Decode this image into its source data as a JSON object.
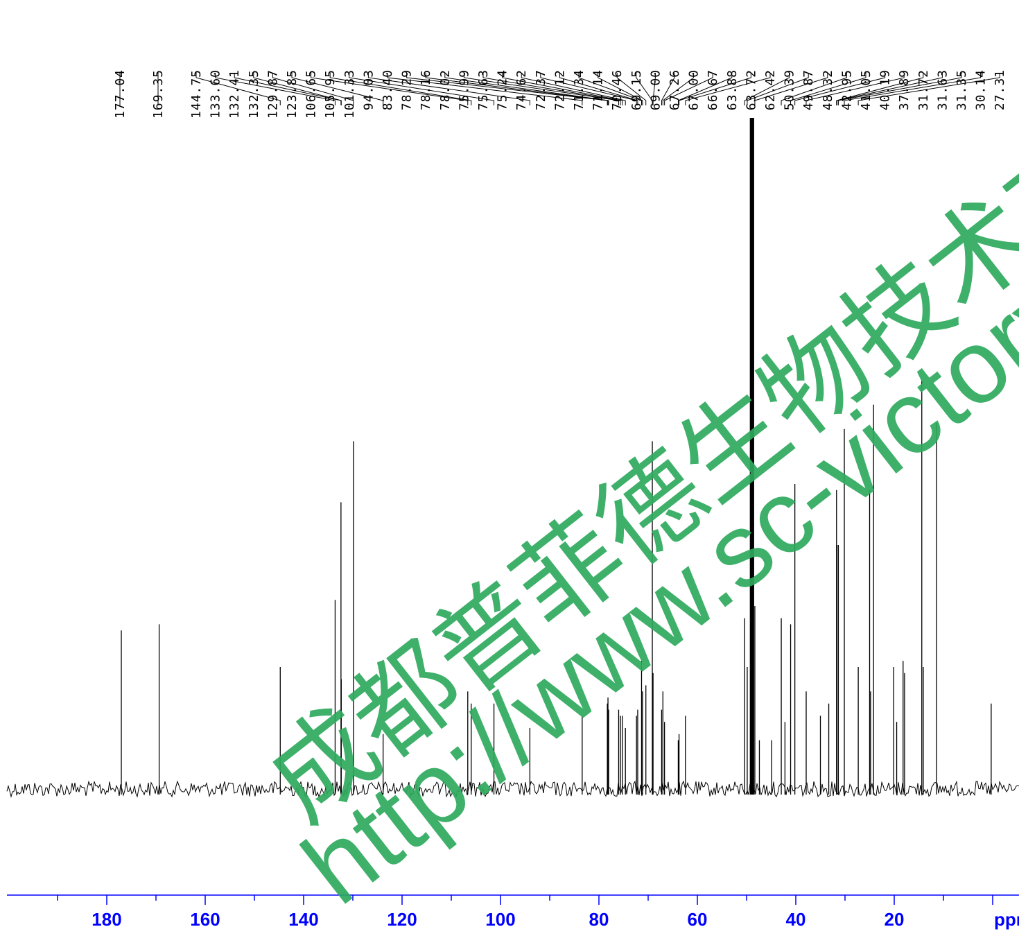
{
  "chart_data": {
    "type": "line",
    "title": "",
    "xlabel": "ppm",
    "ylabel": "",
    "x_reversed": true,
    "xlim": [
      197,
      -5
    ],
    "x_ticks_major": [
      180,
      160,
      140,
      120,
      100,
      80,
      60,
      40,
      20
    ],
    "x_ticks_minor_step": 10,
    "axis_color": "#0000ff",
    "trace_color": "#000000",
    "grid": false,
    "legend": "none",
    "peak_labels": [
      "177.04",
      "169.35",
      "144.75",
      "133.60",
      "132.41",
      "132.35",
      "129.87",
      "123.85",
      "106.65",
      "105.95",
      "101.33",
      "94.03",
      "83.40",
      "78.29",
      "78.16",
      "78.02",
      "75.99",
      "75.63",
      "75.24",
      "74.62",
      "72.37",
      "72.12",
      "71.34",
      "71.14",
      "70.46",
      "69.15",
      "69.00",
      "67.26",
      "67.00",
      "66.67",
      "63.88",
      "63.72",
      "62.42",
      "50.39",
      "49.87",
      "48.32",
      "42.95",
      "41.05",
      "40.19",
      "37.89",
      "31.72",
      "31.63",
      "31.35",
      "30.14",
      "27.31"
    ],
    "peaks": [
      {
        "x": 177.04,
        "h": 0.26
      },
      {
        "x": 169.35,
        "h": 0.27
      },
      {
        "x": 144.75,
        "h": 0.2
      },
      {
        "x": 133.6,
        "h": 0.31
      },
      {
        "x": 132.41,
        "h": 0.47
      },
      {
        "x": 132.35,
        "h": 0.18
      },
      {
        "x": 129.87,
        "h": 0.57
      },
      {
        "x": 123.85,
        "h": 0.09
      },
      {
        "x": 106.65,
        "h": 0.16
      },
      {
        "x": 105.95,
        "h": 0.14
      },
      {
        "x": 101.33,
        "h": 0.14
      },
      {
        "x": 94.03,
        "h": 0.1
      },
      {
        "x": 83.4,
        "h": 0.12
      },
      {
        "x": 78.29,
        "h": 0.14
      },
      {
        "x": 78.16,
        "h": 0.15
      },
      {
        "x": 78.02,
        "h": 0.13
      },
      {
        "x": 75.99,
        "h": 0.13
      },
      {
        "x": 75.63,
        "h": 0.12
      },
      {
        "x": 75.24,
        "h": 0.12
      },
      {
        "x": 74.62,
        "h": 0.1
      },
      {
        "x": 72.37,
        "h": 0.12
      },
      {
        "x": 72.12,
        "h": 0.13
      },
      {
        "x": 71.34,
        "h": 0.21
      },
      {
        "x": 71.14,
        "h": 0.16
      },
      {
        "x": 70.46,
        "h": 0.17
      },
      {
        "x": 69.15,
        "h": 0.57
      },
      {
        "x": 69.0,
        "h": 0.19
      },
      {
        "x": 67.26,
        "h": 0.13
      },
      {
        "x": 67.0,
        "h": 0.16
      },
      {
        "x": 66.67,
        "h": 0.11
      },
      {
        "x": 63.88,
        "h": 0.08
      },
      {
        "x": 63.72,
        "h": 0.09
      },
      {
        "x": 62.42,
        "h": 0.12
      },
      {
        "x": 50.39,
        "h": 0.28
      },
      {
        "x": 49.87,
        "h": 0.2
      },
      {
        "x": 49.2,
        "h": 1.1
      },
      {
        "x": 49.0,
        "h": 1.1
      },
      {
        "x": 48.8,
        "h": 1.1
      },
      {
        "x": 48.6,
        "h": 1.1
      },
      {
        "x": 48.32,
        "h": 0.3
      },
      {
        "x": 47.4,
        "h": 0.08
      },
      {
        "x": 44.9,
        "h": 0.08
      },
      {
        "x": 42.95,
        "h": 0.28
      },
      {
        "x": 42.2,
        "h": 0.11
      },
      {
        "x": 41.05,
        "h": 0.27
      },
      {
        "x": 40.19,
        "h": 0.5
      },
      {
        "x": 37.89,
        "h": 0.16
      },
      {
        "x": 35.0,
        "h": 0.12
      },
      {
        "x": 33.3,
        "h": 0.14
      },
      {
        "x": 31.72,
        "h": 0.49
      },
      {
        "x": 31.63,
        "h": 0.4
      },
      {
        "x": 31.35,
        "h": 0.4
      },
      {
        "x": 30.14,
        "h": 0.59
      },
      {
        "x": 27.31,
        "h": 0.2
      },
      {
        "x": 25.0,
        "h": 0.49
      },
      {
        "x": 24.8,
        "h": 0.16
      },
      {
        "x": 24.2,
        "h": 0.63
      },
      {
        "x": 20.1,
        "h": 0.2
      },
      {
        "x": 19.5,
        "h": 0.11
      },
      {
        "x": 18.2,
        "h": 0.21
      },
      {
        "x": 17.9,
        "h": 0.19
      },
      {
        "x": 14.4,
        "h": 0.67
      },
      {
        "x": 14.1,
        "h": 0.2
      },
      {
        "x": 11.4,
        "h": 0.6
      },
      {
        "x": 0.3,
        "h": 0.14
      }
    ]
  },
  "watermark": {
    "chinese": "成都普菲德生物技术有限",
    "url": "http://www.sc-victory.co",
    "color": "#2eaa5e"
  }
}
